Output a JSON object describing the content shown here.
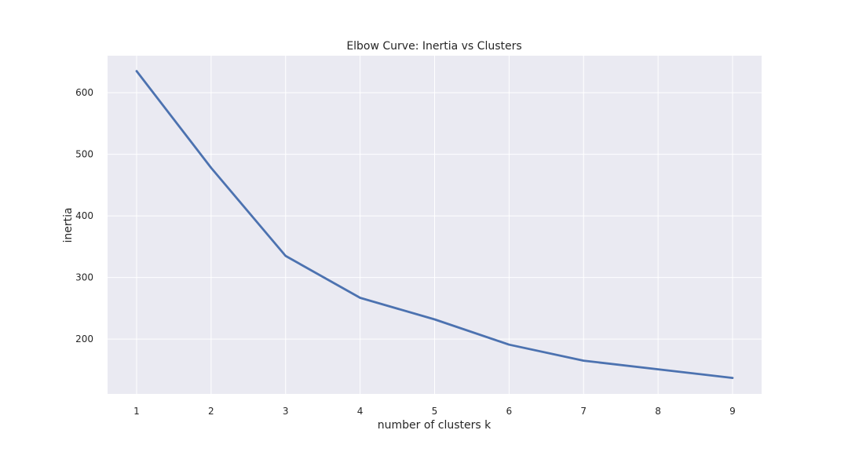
{
  "chart_data": {
    "type": "line",
    "title": "Elbow Curve: Inertia vs Clusters",
    "xlabel": "number of clusters k",
    "ylabel": "inertia",
    "x": [
      1,
      2,
      3,
      4,
      5,
      6,
      7,
      8,
      9
    ],
    "xlim": [
      0.61,
      9.39
    ],
    "ylim": [
      111,
      660
    ],
    "x_ticks": [
      1,
      2,
      3,
      4,
      5,
      6,
      7,
      8,
      9
    ],
    "y_ticks": [
      200,
      300,
      400,
      500,
      600
    ],
    "grid": true,
    "series": [
      {
        "values": [
          635,
          478,
          335,
          267,
          232,
          191,
          165,
          151,
          137
        ],
        "color": "#4c72b0"
      }
    ],
    "background_color": "#eaeaf2"
  }
}
